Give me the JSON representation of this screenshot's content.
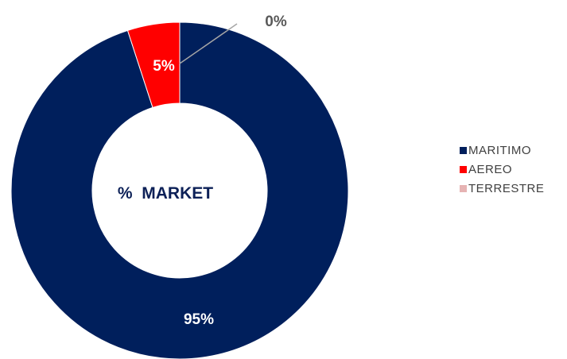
{
  "chart_data": {
    "type": "donut",
    "center_label": "%  MARKET",
    "slices": [
      {
        "name": "MARITIMO",
        "value": 95,
        "label": "95%",
        "color": "#001f5c",
        "label_color": "#ffffff"
      },
      {
        "name": "AEREO",
        "value": 5,
        "label": "5%",
        "color": "#ff0000",
        "label_color": "#ffffff"
      },
      {
        "name": "TERRESTRE",
        "value": 0,
        "label": "0%",
        "color": "#e6b3b3",
        "label_color": "#595959"
      }
    ],
    "legend_position": "right",
    "grid": false
  }
}
